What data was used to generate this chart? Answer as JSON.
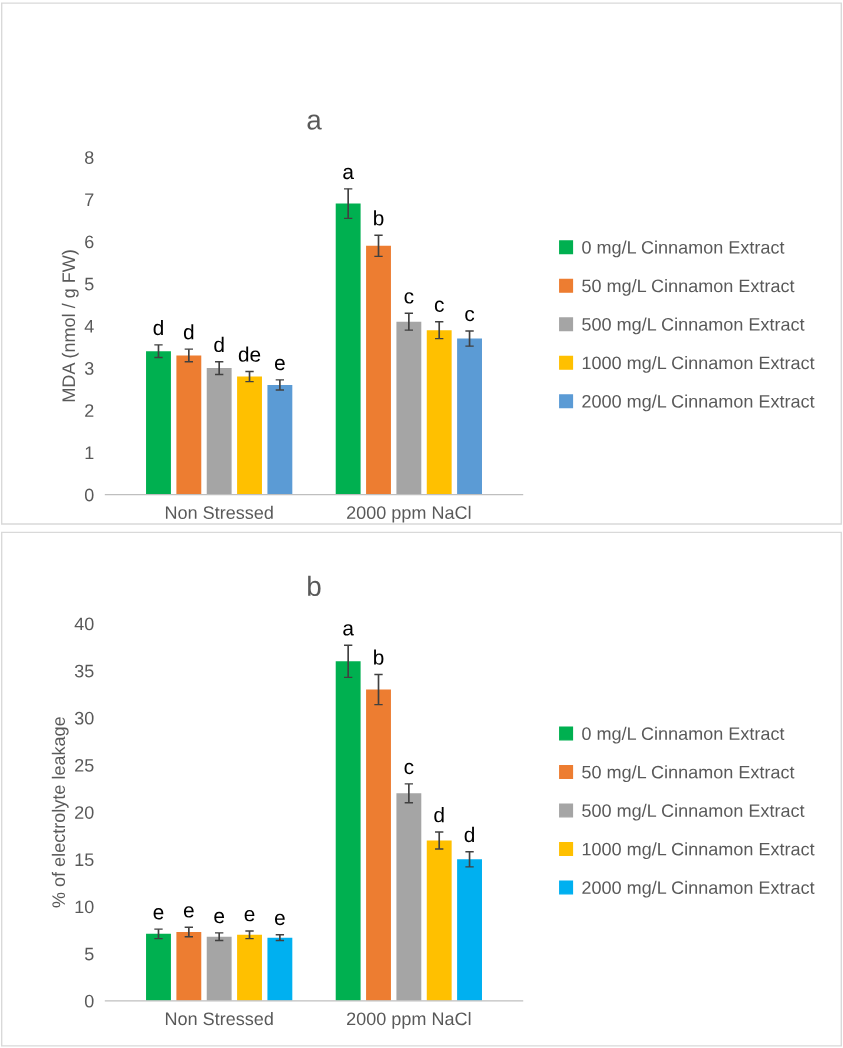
{
  "chart_data": [
    {
      "type": "bar",
      "title": "a",
      "ylabel": "MDA (nmol / g FW)",
      "categories": [
        "Non Stressed",
        "2000 ppm NaCl"
      ],
      "ylim": [
        0,
        8
      ],
      "yticks": [
        0,
        1,
        2,
        3,
        4,
        5,
        6,
        7,
        8
      ],
      "grid": false,
      "legend": "right",
      "series": [
        {
          "name": "0 mg/L Cinnamon Extract",
          "color": "#00b050",
          "values": [
            3.4,
            6.9
          ],
          "errors": [
            0.15,
            0.35
          ],
          "value_labels": [
            "d",
            "a"
          ]
        },
        {
          "name": "50 mg/L Cinnamon Extract",
          "color": "#ed7d31",
          "values": [
            3.3,
            5.9
          ],
          "errors": [
            0.15,
            0.25
          ],
          "value_labels": [
            "d",
            "b"
          ]
        },
        {
          "name": "500 mg/L Cinnamon Extract",
          "color": "#a5a5a5",
          "values": [
            3.0,
            4.1
          ],
          "errors": [
            0.15,
            0.2
          ],
          "value_labels": [
            "d",
            "c"
          ]
        },
        {
          "name": "1000 mg/L Cinnamon Extract",
          "color": "#ffc000",
          "values": [
            2.8,
            3.9
          ],
          "errors": [
            0.12,
            0.2
          ],
          "value_labels": [
            "de",
            "c"
          ]
        },
        {
          "name": "2000 mg/L Cinnamon Extract",
          "color": "#5b9bd5",
          "values": [
            2.6,
            3.7
          ],
          "errors": [
            0.12,
            0.18
          ],
          "value_labels": [
            "e",
            "c"
          ]
        }
      ]
    },
    {
      "type": "bar",
      "title": "b",
      "ylabel": "% of electrolyte leakage",
      "categories": [
        "Non Stressed",
        "2000 ppm NaCl"
      ],
      "ylim": [
        0,
        40
      ],
      "yticks": [
        0,
        5,
        10,
        15,
        20,
        25,
        30,
        35,
        40
      ],
      "grid": false,
      "legend": "right",
      "series": [
        {
          "name": "0 mg/L Cinnamon Extract",
          "color": "#00b050",
          "values": [
            7.1,
            36
          ],
          "errors": [
            0.5,
            1.7
          ],
          "value_labels": [
            "e",
            "a"
          ]
        },
        {
          "name": "50 mg/L Cinnamon Extract",
          "color": "#ed7d31",
          "values": [
            7.3,
            33
          ],
          "errors": [
            0.5,
            1.6
          ],
          "value_labels": [
            "e",
            "b"
          ]
        },
        {
          "name": "500 mg/L Cinnamon Extract",
          "color": "#a5a5a5",
          "values": [
            6.8,
            22
          ],
          "errors": [
            0.4,
            1.0
          ],
          "value_labels": [
            "e",
            "c"
          ]
        },
        {
          "name": "1000 mg/L Cinnamon Extract",
          "color": "#ffc000",
          "values": [
            7.0,
            17
          ],
          "errors": [
            0.4,
            0.9
          ],
          "value_labels": [
            "e",
            "d"
          ]
        },
        {
          "name": "2000 mg/L Cinnamon Extract",
          "color": "#00b0f0",
          "values": [
            6.7,
            15
          ],
          "errors": [
            0.3,
            0.8
          ],
          "value_labels": [
            "e",
            "d"
          ]
        }
      ]
    }
  ]
}
